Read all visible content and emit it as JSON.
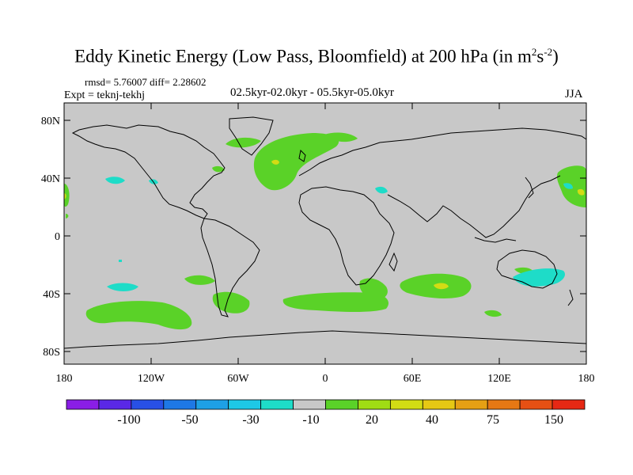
{
  "title": {
    "main": "Eddy Kinetic Energy (Low Pass, Bloomfield) at 200 hPa (in m",
    "sup1": "2",
    "mid": "s",
    "sup2": "-2",
    "end": ")"
  },
  "stats_text": "rmsd= 5.76007 diff= 2.28602",
  "experiment_text": "Expt = teknj-tekhj",
  "period_text": "02.5kyr-02.0kyr - 05.5kyr-05.0kyr",
  "season_text": "JJA",
  "lat_labels": [
    "80N",
    "40N",
    "0",
    "40S",
    "80S"
  ],
  "lon_labels": [
    "180",
    "120W",
    "60W",
    "0",
    "60E",
    "120E",
    "180"
  ],
  "colorbar": {
    "colors": [
      "#8a1ee6",
      "#5a28e6",
      "#2850e6",
      "#1e78e6",
      "#1ea0e6",
      "#1ec8e6",
      "#1edcc8",
      "#c8c8c8",
      "#5ad228",
      "#a0dc14",
      "#d2dc14",
      "#e6c814",
      "#e6a014",
      "#e67814",
      "#e65014",
      "#e62814"
    ],
    "labels": [
      "-100",
      "-50",
      "-30",
      "-10",
      "20",
      "40",
      "75",
      "150"
    ]
  },
  "field_colors": {
    "neutral": "#c8c8c8",
    "positive_20": "#5ad228",
    "positive_40": "#d2dc14",
    "negative_10": "#1edcc8"
  }
}
